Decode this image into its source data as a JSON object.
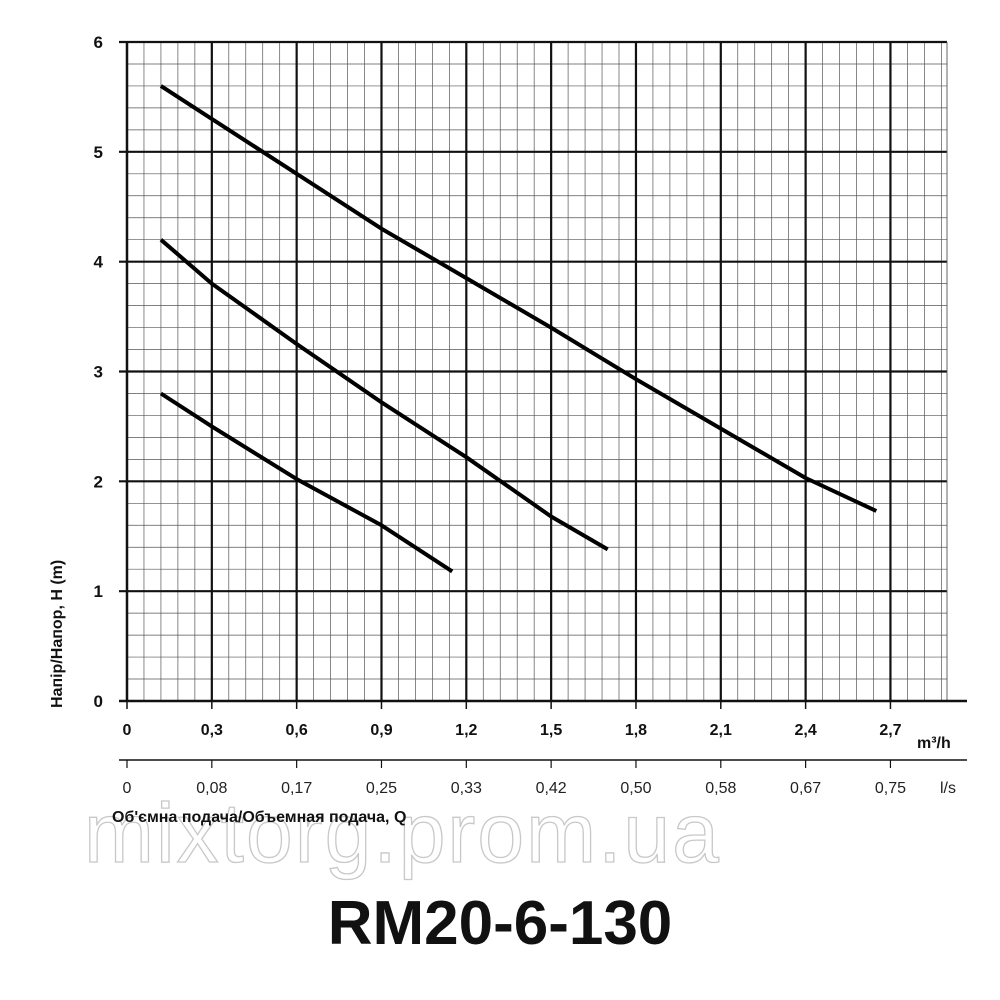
{
  "chart_data": {
    "type": "line",
    "title": "RM20-6-130",
    "xlabel": "Об'ємна подача/Объемная подача, Q",
    "ylabel": "Напір/Напор, H (m)",
    "x_unit": "m³/h",
    "x2_unit": "l/s",
    "xlim": [
      0,
      2.9
    ],
    "ylim": [
      0,
      6
    ],
    "grid": true,
    "x_ticks": [
      "0",
      "0,3",
      "0,6",
      "0,9",
      "1,2",
      "1,5",
      "1,8",
      "2,1",
      "2,4",
      "2,7"
    ],
    "x2_ticks": [
      "0",
      "0,08",
      "0,17",
      "0,25",
      "0,33",
      "0,42",
      "0,50",
      "0,58",
      "0,67",
      "0,75"
    ],
    "y_ticks": [
      "0",
      "1",
      "2",
      "3",
      "4",
      "5",
      "6"
    ],
    "series": [
      {
        "x": [
          0.12,
          0.3,
          0.6,
          0.9,
          1.2,
          1.5,
          1.8,
          2.1,
          2.4,
          2.65
        ],
        "values": [
          5.6,
          5.3,
          4.8,
          4.3,
          3.85,
          3.4,
          2.93,
          2.48,
          2.03,
          1.73
        ]
      },
      {
        "x": [
          0.12,
          0.3,
          0.6,
          0.9,
          1.2,
          1.5,
          1.7
        ],
        "values": [
          4.2,
          3.8,
          3.25,
          2.72,
          2.22,
          1.68,
          1.38
        ]
      },
      {
        "x": [
          0.12,
          0.3,
          0.6,
          0.9,
          1.15
        ],
        "values": [
          2.8,
          2.5,
          2.02,
          1.6,
          1.18
        ]
      }
    ]
  },
  "watermark": "mixtorg.prom.ua"
}
